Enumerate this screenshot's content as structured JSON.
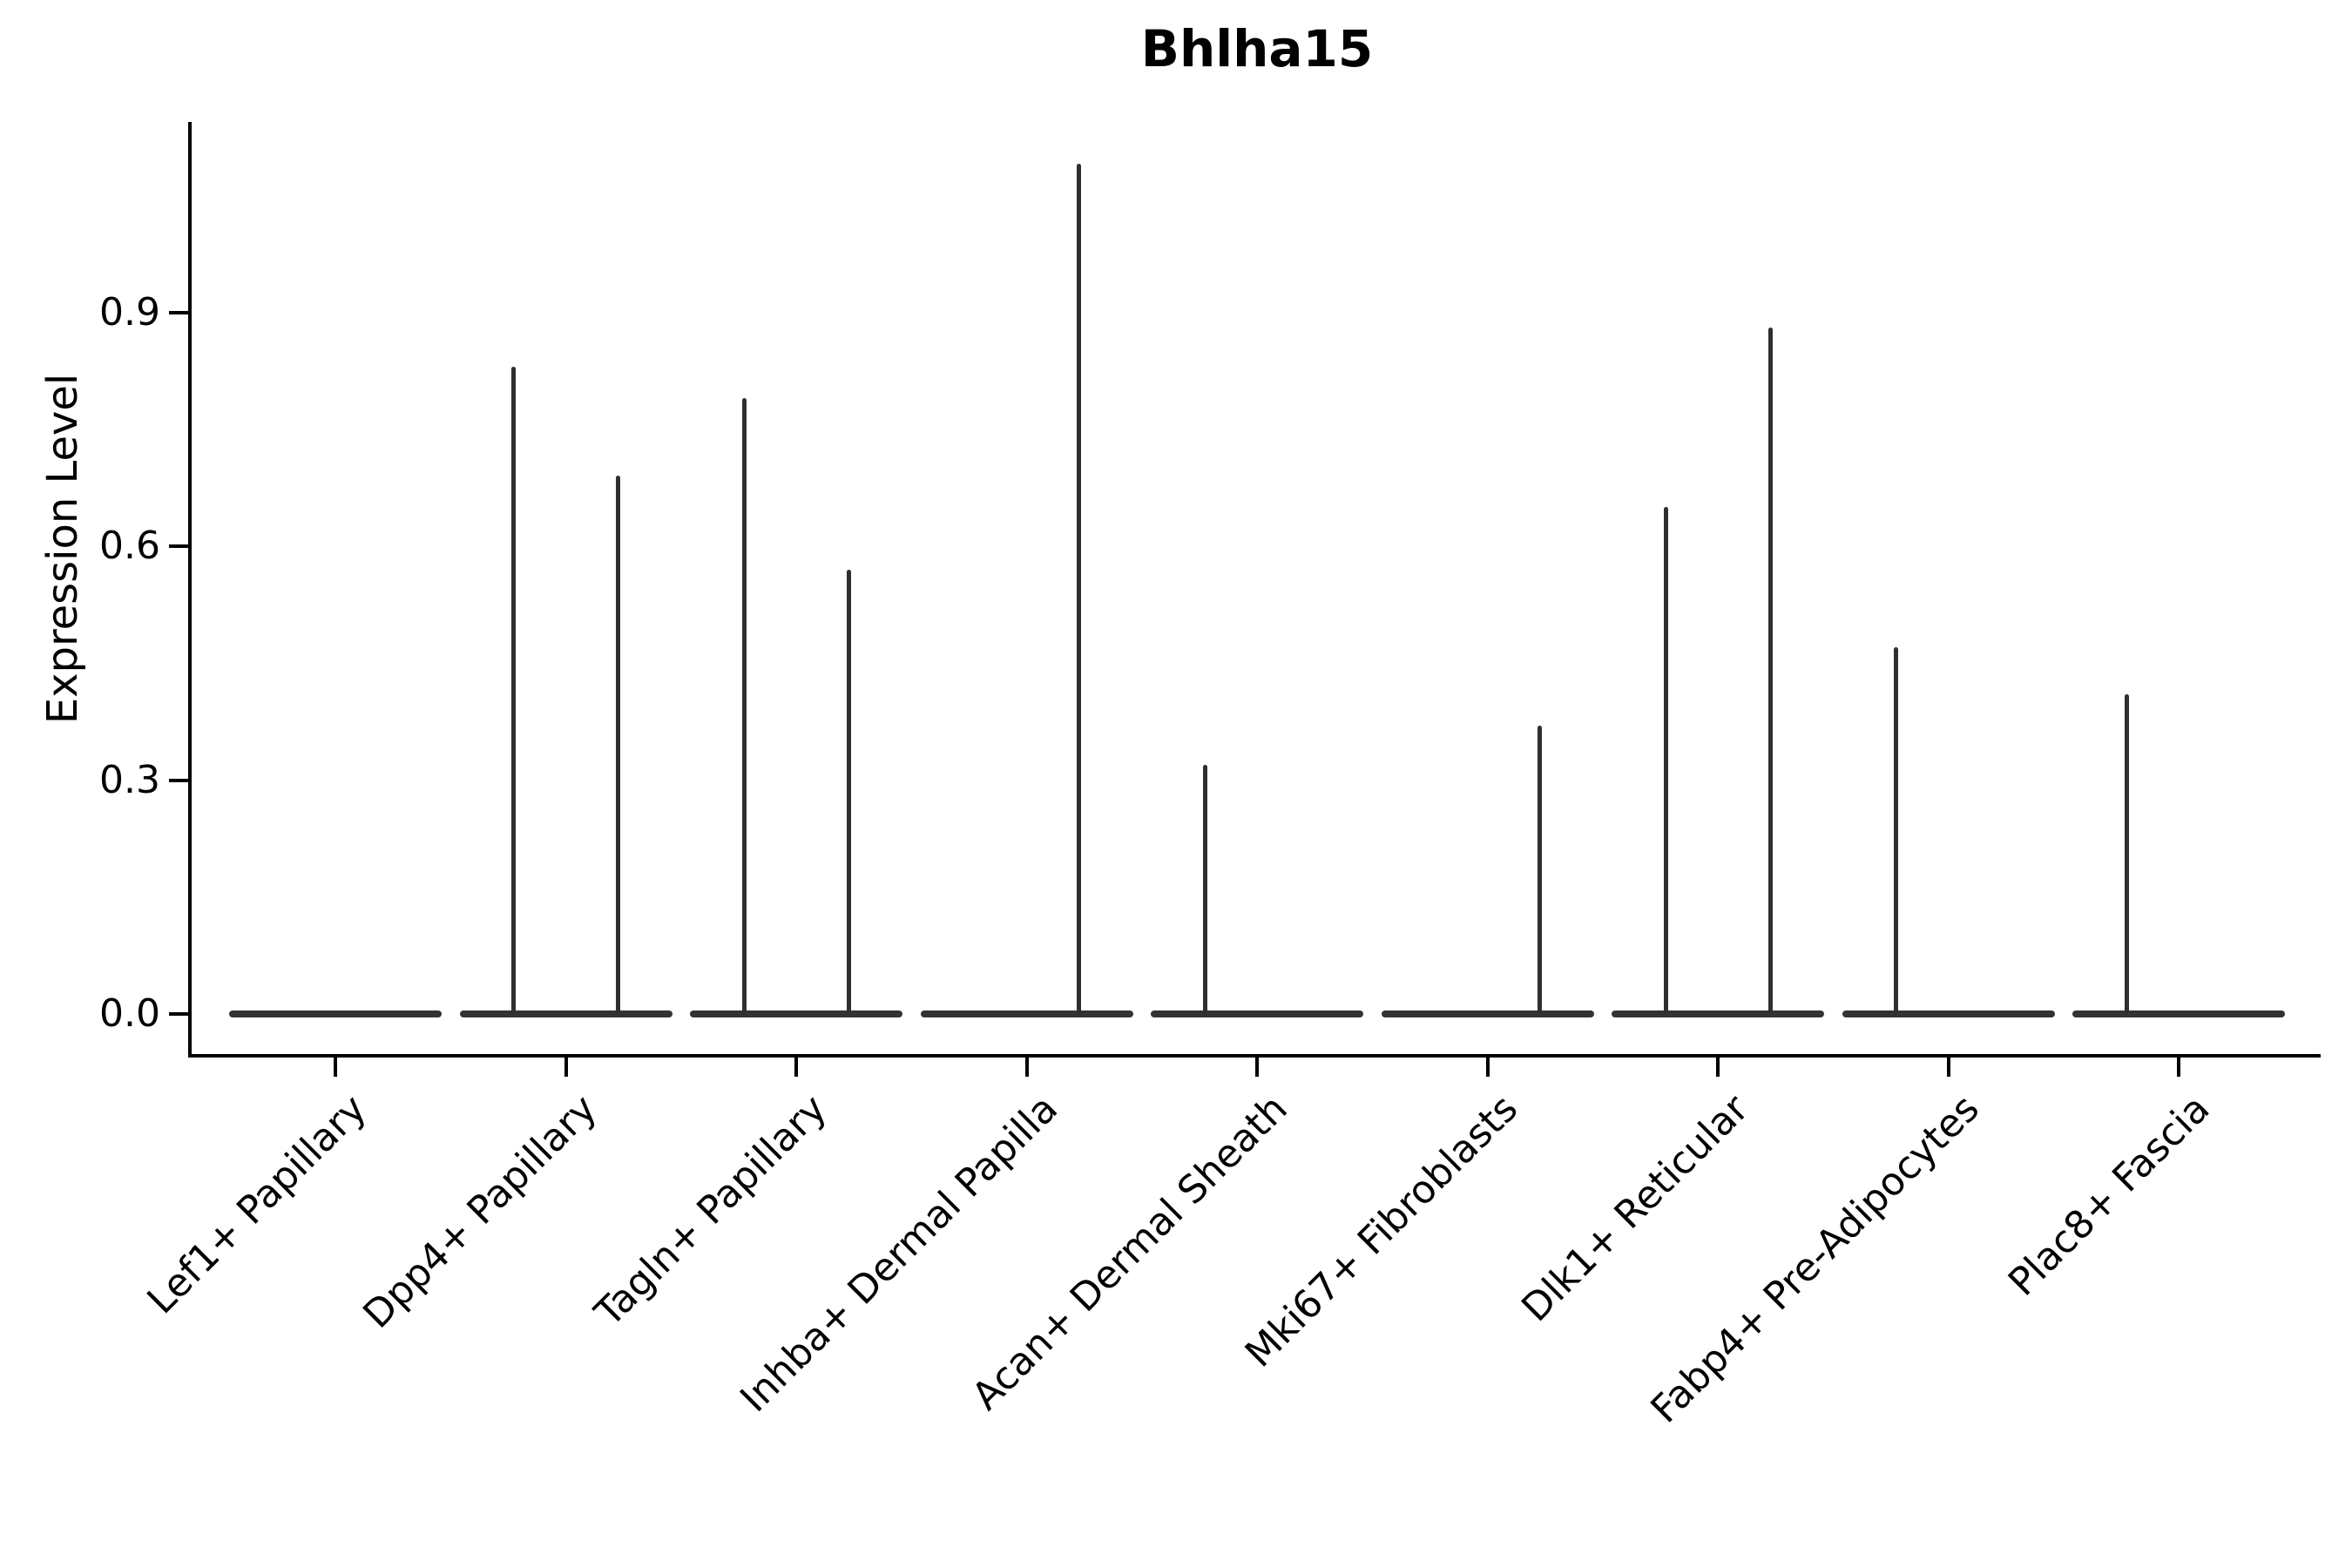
{
  "title": "Bhlha15",
  "axes": {
    "ylabel": "Expression Level",
    "ytick_labels": [
      "0.0",
      "0.3",
      "0.6",
      "0.9"
    ]
  },
  "colors": {
    "background": "#ffffff",
    "axis": "#000000",
    "text": "#000000",
    "violin": "#333333",
    "spike": "#2f2f2f"
  },
  "chart_data": {
    "type": "violin",
    "title": "Bhlha15",
    "xlabel": "",
    "ylabel": "Expression Level",
    "ylim": [
      0,
      1.14
    ],
    "yticks": [
      0.0,
      0.3,
      0.6,
      0.9
    ],
    "grid": false,
    "legend": "none",
    "categories": [
      "Lef1+ Papillary",
      "Dpp4+ Papillary",
      "Tagln+ Papillary",
      "Inhba+ Dermal Papilla",
      "Acan+ Dermal Sheath",
      "Mki67+ Fibroblasts",
      "Dlk1+ Reticular",
      "Fabp4+ Pre-Adipocytes",
      "Plac8+ Fascia"
    ],
    "series": [
      {
        "category": "Lef1+ Papillary",
        "baseline": 0.0,
        "spikes": []
      },
      {
        "category": "Dpp4+ Papillary",
        "baseline": 0.0,
        "spikes": [
          {
            "position": "left",
            "max_expression": 0.83
          },
          {
            "position": "right",
            "max_expression": 0.69
          }
        ]
      },
      {
        "category": "Tagln+ Papillary",
        "baseline": 0.0,
        "spikes": [
          {
            "position": "left",
            "max_expression": 0.79
          },
          {
            "position": "right",
            "max_expression": 0.57
          }
        ]
      },
      {
        "category": "Inhba+ Dermal Papilla",
        "baseline": 0.0,
        "spikes": [
          {
            "position": "right",
            "max_expression": 1.09
          }
        ]
      },
      {
        "category": "Acan+ Dermal Sheath",
        "baseline": 0.0,
        "spikes": [
          {
            "position": "left",
            "max_expression": 0.32
          }
        ]
      },
      {
        "category": "Mki67+ Fibroblasts",
        "baseline": 0.0,
        "spikes": [
          {
            "position": "right",
            "max_expression": 0.37
          }
        ]
      },
      {
        "category": "Dlk1+ Reticular",
        "baseline": 0.0,
        "spikes": [
          {
            "position": "left",
            "max_expression": 0.65
          },
          {
            "position": "right",
            "max_expression": 0.88
          }
        ]
      },
      {
        "category": "Fabp4+ Pre-Adipocytes",
        "baseline": 0.0,
        "spikes": [
          {
            "position": "left",
            "max_expression": 0.47
          }
        ]
      },
      {
        "category": "Plac8+ Fascia",
        "baseline": 0.0,
        "spikes": [
          {
            "position": "left",
            "max_expression": 0.41
          }
        ]
      }
    ],
    "notes": "Violins are collapsed to flat baselines at expression 0 with thin vertical spikes reaching the maximum expression of rare expressing cells; each category holds two side-by-side sub-violin slots."
  }
}
